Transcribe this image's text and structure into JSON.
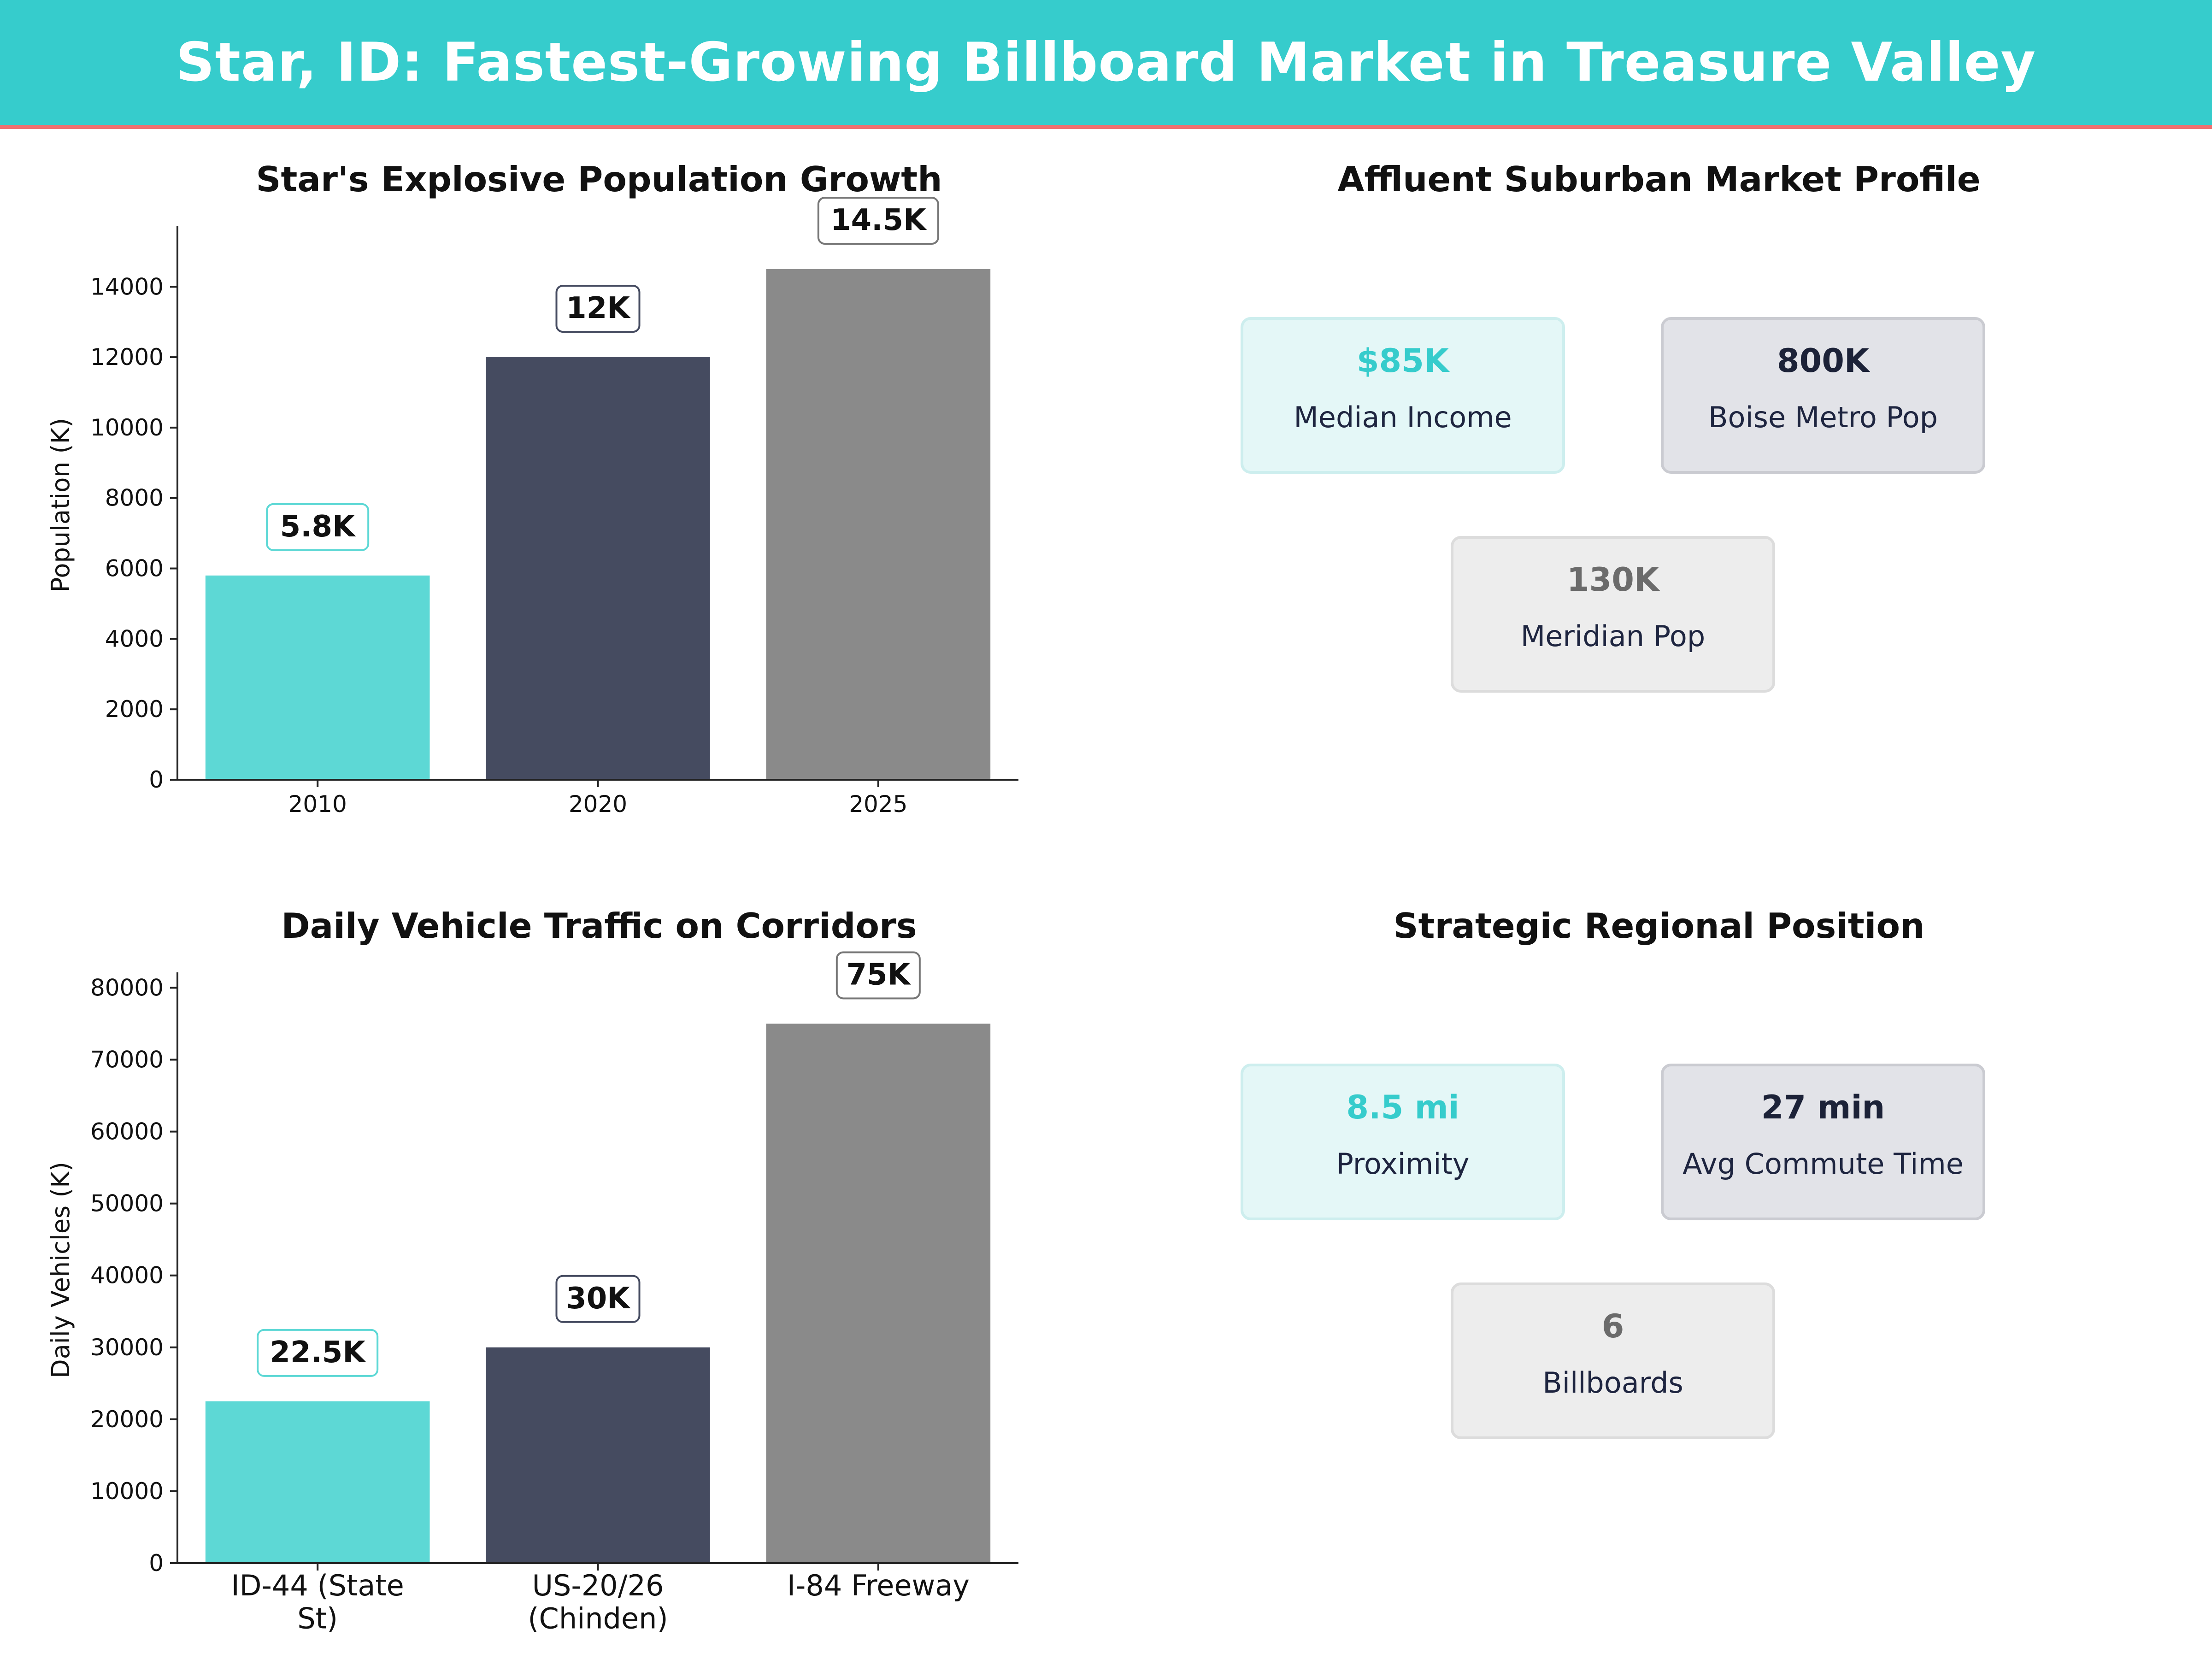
{
  "header": {
    "title": "Star, ID: Fastest-Growing Billboard Market in Treasure Valley"
  },
  "colors": {
    "teal": "#5dd8d5",
    "navy": "#454b60",
    "gray": "#8a8a8a",
    "header_bg": "#36cccc",
    "header_line": "#f07070"
  },
  "chart_data": [
    {
      "type": "bar",
      "title": "Star's Explosive Population Growth",
      "xlabel": "",
      "ylabel": "Population (K)",
      "categories": [
        "2010",
        "2020",
        "2025"
      ],
      "values": [
        5800,
        12000,
        14500
      ],
      "data_labels": [
        "5.8K",
        "12K",
        "14.5K"
      ],
      "ylim": [
        0,
        15600
      ],
      "yticks": [
        0,
        2000,
        4000,
        6000,
        8000,
        10000,
        12000,
        14000
      ],
      "grid": false
    },
    {
      "type": "bar",
      "title": "Daily Vehicle Traffic on Corridors",
      "xlabel": "",
      "ylabel": "Daily Vehicles (K)",
      "categories": [
        [
          "ID-44 (State",
          "St)"
        ],
        [
          "US-20/26",
          "(Chinden)"
        ],
        [
          "I-84 Freeway"
        ]
      ],
      "values": [
        22500,
        30000,
        75000
      ],
      "data_labels": [
        "22.5K",
        "30K",
        "75K"
      ],
      "ylim": [
        0,
        81500
      ],
      "yticks": [
        0,
        10000,
        20000,
        30000,
        40000,
        50000,
        60000,
        70000,
        80000
      ],
      "grid": false
    }
  ],
  "market_profile": {
    "title": "Affluent Suburban Market Profile",
    "cards": [
      {
        "value": "$85K",
        "label": "Median Income"
      },
      {
        "value": "800K",
        "label": "Boise Metro Pop"
      },
      {
        "value": "130K",
        "label": "Meridian Pop"
      }
    ]
  },
  "regional_position": {
    "title": "Strategic Regional Position",
    "cards": [
      {
        "value": "8.5 mi",
        "label": "Proximity"
      },
      {
        "value": "27 min",
        "label": "Avg Commute Time"
      },
      {
        "value": "6",
        "label": "Billboards"
      }
    ]
  }
}
